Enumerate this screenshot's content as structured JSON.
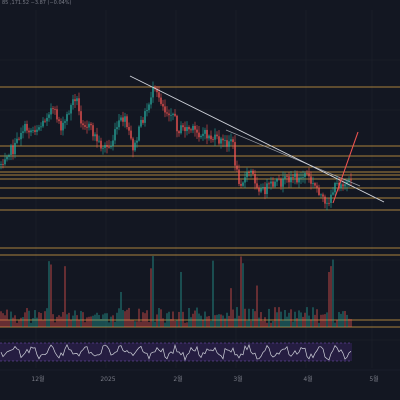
{
  "header": {
    "ohlc_readout": "85 ,171.52 −3.87 (−0.04%)"
  },
  "colors": {
    "background": "#131722",
    "up": "#26a69a",
    "down": "#ef5350",
    "level_line": "#f0b54a",
    "trendline": "#d1d4dc",
    "breakout_line": "#ef5350",
    "rsi_line": "#d1d4dc",
    "rsi_band_fill": "#2a1f4a",
    "rsi_band_border": "#7e57c2",
    "grid": "#1e222d",
    "axis_text": "#787b86"
  },
  "x_axis": {
    "labels": [
      "12월",
      "2025",
      "2월",
      "3월",
      "4월",
      "5월"
    ]
  },
  "chart_data": {
    "type": "candlestick",
    "title": "",
    "panes": [
      "price",
      "volume",
      "rsi"
    ],
    "overlays": {
      "horizontal_levels": "multiple orange support/resistance levels",
      "descending_trendline": true,
      "breakout_arrow": true
    }
  }
}
